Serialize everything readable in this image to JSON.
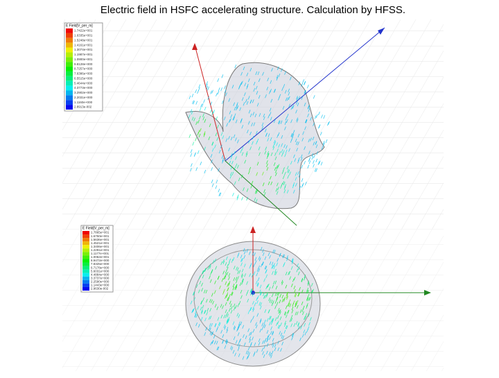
{
  "title": "Electric field in HSFC accelerating structure. Calculation by HFSS.",
  "figures": [
    {
      "legend": {
        "title": "E Field[V_per_m]",
        "entries": [
          "1.7422e+001",
          "1.6335e+001",
          "1.5248e+001",
          "1.4161e+001",
          "1.3074e+001",
          "1.1987e+001",
          "1.0900e+001",
          "9.8128e+000",
          "8.7257e+000",
          "7.6386e+000",
          "6.5515e+000",
          "5.4644e+000",
          "4.3773e+000",
          "3.2902e+000",
          "2.2031e+000",
          "1.1160e+000",
          "2.8913e-002"
        ]
      }
    },
    {
      "legend": {
        "title": "E Field[V_per_m]",
        "entries": [
          "1.7865e+001",
          "1.6750e+001",
          "1.5636e+001",
          "1.4521e+001",
          "1.3406e+001",
          "1.2291e+001",
          "1.1177e+001",
          "1.0062e+001",
          "8.9472e+000",
          "7.8325e+000",
          "6.7178e+000",
          "5.6031e+000",
          "4.4884e+000",
          "3.3737e+000",
          "2.2590e+000",
          "1.1443e+000",
          "2.9630e-002"
        ]
      }
    }
  ]
}
